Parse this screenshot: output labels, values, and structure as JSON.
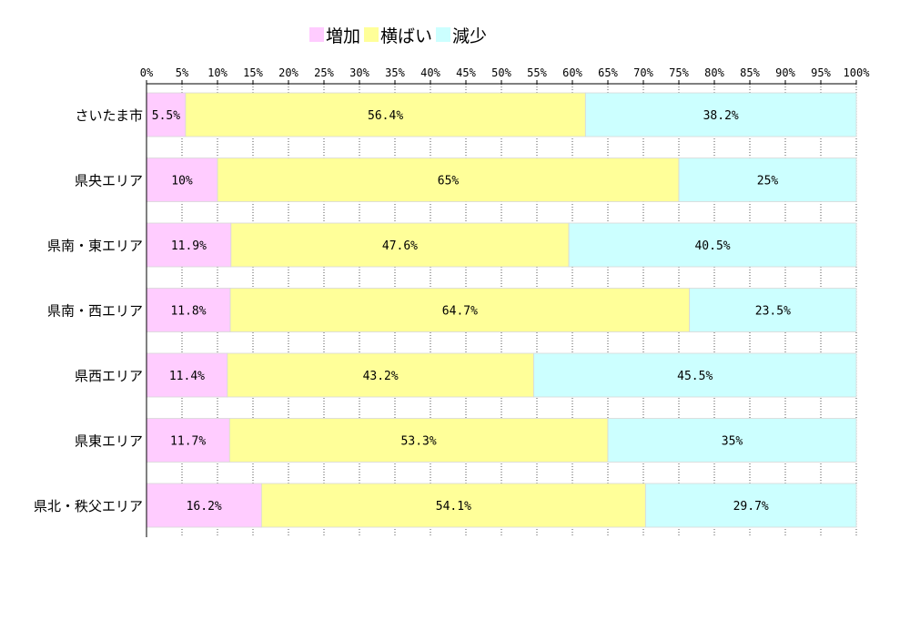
{
  "chart_data": {
    "type": "bar",
    "orientation": "horizontal",
    "stacked": "percent",
    "categories": [
      "さいたま市",
      "県央エリア",
      "県南・東エリア",
      "県南・西エリア",
      "県西エリア",
      "県東エリア",
      "県北・秩父エリア"
    ],
    "series": [
      {
        "name": "増加",
        "color": "#ffccff",
        "values": [
          5.5,
          10,
          11.9,
          11.8,
          11.4,
          11.7,
          16.2
        ],
        "labels": [
          "5.5%",
          "10%",
          "11.9%",
          "11.8%",
          "11.4%",
          "11.7%",
          "16.2%"
        ]
      },
      {
        "name": "横ばい",
        "color": "#ffff99",
        "values": [
          56.4,
          65,
          47.6,
          64.7,
          43.2,
          53.3,
          54.1
        ],
        "labels": [
          "56.4%",
          "65%",
          "47.6%",
          "64.7%",
          "43.2%",
          "53.3%",
          "54.1%"
        ]
      },
      {
        "name": "減少",
        "color": "#ccffff",
        "values": [
          38.2,
          25,
          40.5,
          23.5,
          45.5,
          35,
          29.7
        ],
        "labels": [
          "38.2%",
          "25%",
          "40.5%",
          "23.5%",
          "45.5%",
          "35%",
          "29.7%"
        ]
      }
    ],
    "xaxis_ticks": [
      "0%",
      "5%",
      "10%",
      "15%",
      "20%",
      "25%",
      "30%",
      "35%",
      "40%",
      "45%",
      "50%",
      "55%",
      "60%",
      "65%",
      "70%",
      "75%",
      "80%",
      "85%",
      "90%",
      "95%",
      "100%"
    ],
    "xlim": [
      0,
      100
    ],
    "grid": true,
    "legend_position": "top"
  }
}
